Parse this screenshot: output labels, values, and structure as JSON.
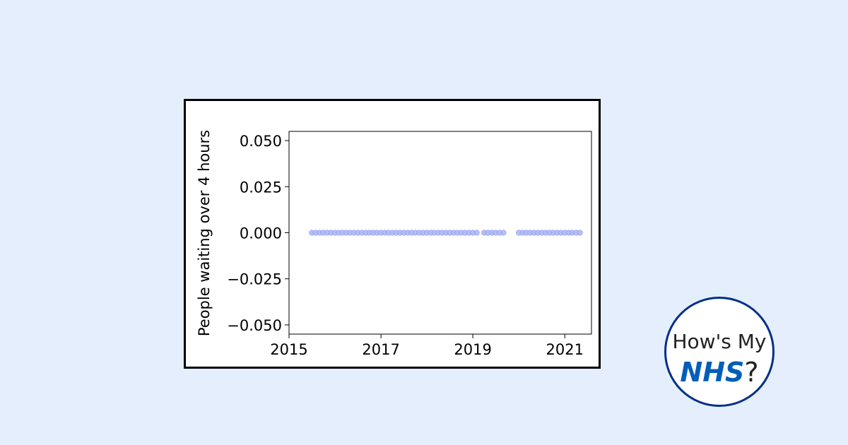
{
  "chart_data": {
    "type": "scatter",
    "ylabel": "People waiting over 4 hours",
    "xlabel": "",
    "x_ticks": [
      "2015",
      "2017",
      "2019",
      "2021"
    ],
    "y_ticks": [
      "0.050",
      "0.025",
      "0.000",
      "−0.025",
      "−0.050"
    ],
    "xlim": [
      "2015-01-01",
      "2021-08-01"
    ],
    "ylim": [
      -0.055,
      0.055
    ],
    "grid": false,
    "marker_color": "#aab4f6",
    "points": [
      {
        "x": "2015-07-01",
        "y": 0
      },
      {
        "x": "2015-08-01",
        "y": 0
      },
      {
        "x": "2015-09-01",
        "y": 0
      },
      {
        "x": "2015-10-01",
        "y": 0
      },
      {
        "x": "2015-11-01",
        "y": 0
      },
      {
        "x": "2015-12-01",
        "y": 0
      },
      {
        "x": "2016-01-01",
        "y": 0
      },
      {
        "x": "2016-02-01",
        "y": 0
      },
      {
        "x": "2016-03-01",
        "y": 0
      },
      {
        "x": "2016-04-01",
        "y": 0
      },
      {
        "x": "2016-05-01",
        "y": 0
      },
      {
        "x": "2016-06-01",
        "y": 0
      },
      {
        "x": "2016-07-01",
        "y": 0
      },
      {
        "x": "2016-08-01",
        "y": 0
      },
      {
        "x": "2016-09-01",
        "y": 0
      },
      {
        "x": "2016-10-01",
        "y": 0
      },
      {
        "x": "2016-11-01",
        "y": 0
      },
      {
        "x": "2016-12-01",
        "y": 0
      },
      {
        "x": "2017-01-01",
        "y": 0
      },
      {
        "x": "2017-02-01",
        "y": 0
      },
      {
        "x": "2017-03-01",
        "y": 0
      },
      {
        "x": "2017-04-01",
        "y": 0
      },
      {
        "x": "2017-05-01",
        "y": 0
      },
      {
        "x": "2017-06-01",
        "y": 0
      },
      {
        "x": "2017-07-01",
        "y": 0
      },
      {
        "x": "2017-08-01",
        "y": 0
      },
      {
        "x": "2017-09-01",
        "y": 0
      },
      {
        "x": "2017-10-01",
        "y": 0
      },
      {
        "x": "2017-11-01",
        "y": 0
      },
      {
        "x": "2017-12-01",
        "y": 0
      },
      {
        "x": "2018-01-01",
        "y": 0
      },
      {
        "x": "2018-02-01",
        "y": 0
      },
      {
        "x": "2018-03-01",
        "y": 0
      },
      {
        "x": "2018-04-01",
        "y": 0
      },
      {
        "x": "2018-05-01",
        "y": 0
      },
      {
        "x": "2018-06-01",
        "y": 0
      },
      {
        "x": "2018-07-01",
        "y": 0
      },
      {
        "x": "2018-08-01",
        "y": 0
      },
      {
        "x": "2018-09-01",
        "y": 0
      },
      {
        "x": "2018-10-01",
        "y": 0
      },
      {
        "x": "2018-11-01",
        "y": 0
      },
      {
        "x": "2018-12-01",
        "y": 0
      },
      {
        "x": "2019-01-01",
        "y": 0
      },
      {
        "x": "2019-02-01",
        "y": 0
      },
      {
        "x": "2019-04-01",
        "y": 0
      },
      {
        "x": "2019-05-01",
        "y": 0
      },
      {
        "x": "2019-06-01",
        "y": 0
      },
      {
        "x": "2019-07-01",
        "y": 0
      },
      {
        "x": "2019-08-01",
        "y": 0
      },
      {
        "x": "2019-09-01",
        "y": 0
      },
      {
        "x": "2020-01-01",
        "y": 0
      },
      {
        "x": "2020-02-01",
        "y": 0
      },
      {
        "x": "2020-03-01",
        "y": 0
      },
      {
        "x": "2020-04-01",
        "y": 0
      },
      {
        "x": "2020-05-01",
        "y": 0
      },
      {
        "x": "2020-06-01",
        "y": 0
      },
      {
        "x": "2020-07-01",
        "y": 0
      },
      {
        "x": "2020-08-01",
        "y": 0
      },
      {
        "x": "2020-09-01",
        "y": 0
      },
      {
        "x": "2020-10-01",
        "y": 0
      },
      {
        "x": "2020-11-01",
        "y": 0
      },
      {
        "x": "2020-12-01",
        "y": 0
      },
      {
        "x": "2021-01-01",
        "y": 0
      },
      {
        "x": "2021-02-01",
        "y": 0
      },
      {
        "x": "2021-03-01",
        "y": 0
      },
      {
        "x": "2021-04-01",
        "y": 0
      },
      {
        "x": "2021-05-01",
        "y": 0
      }
    ]
  },
  "logo": {
    "line1": "How's My",
    "line2_brand": "NHS",
    "line2_suffix": "?",
    "brand_color": "#005EB8",
    "ring_color": "#003087"
  }
}
